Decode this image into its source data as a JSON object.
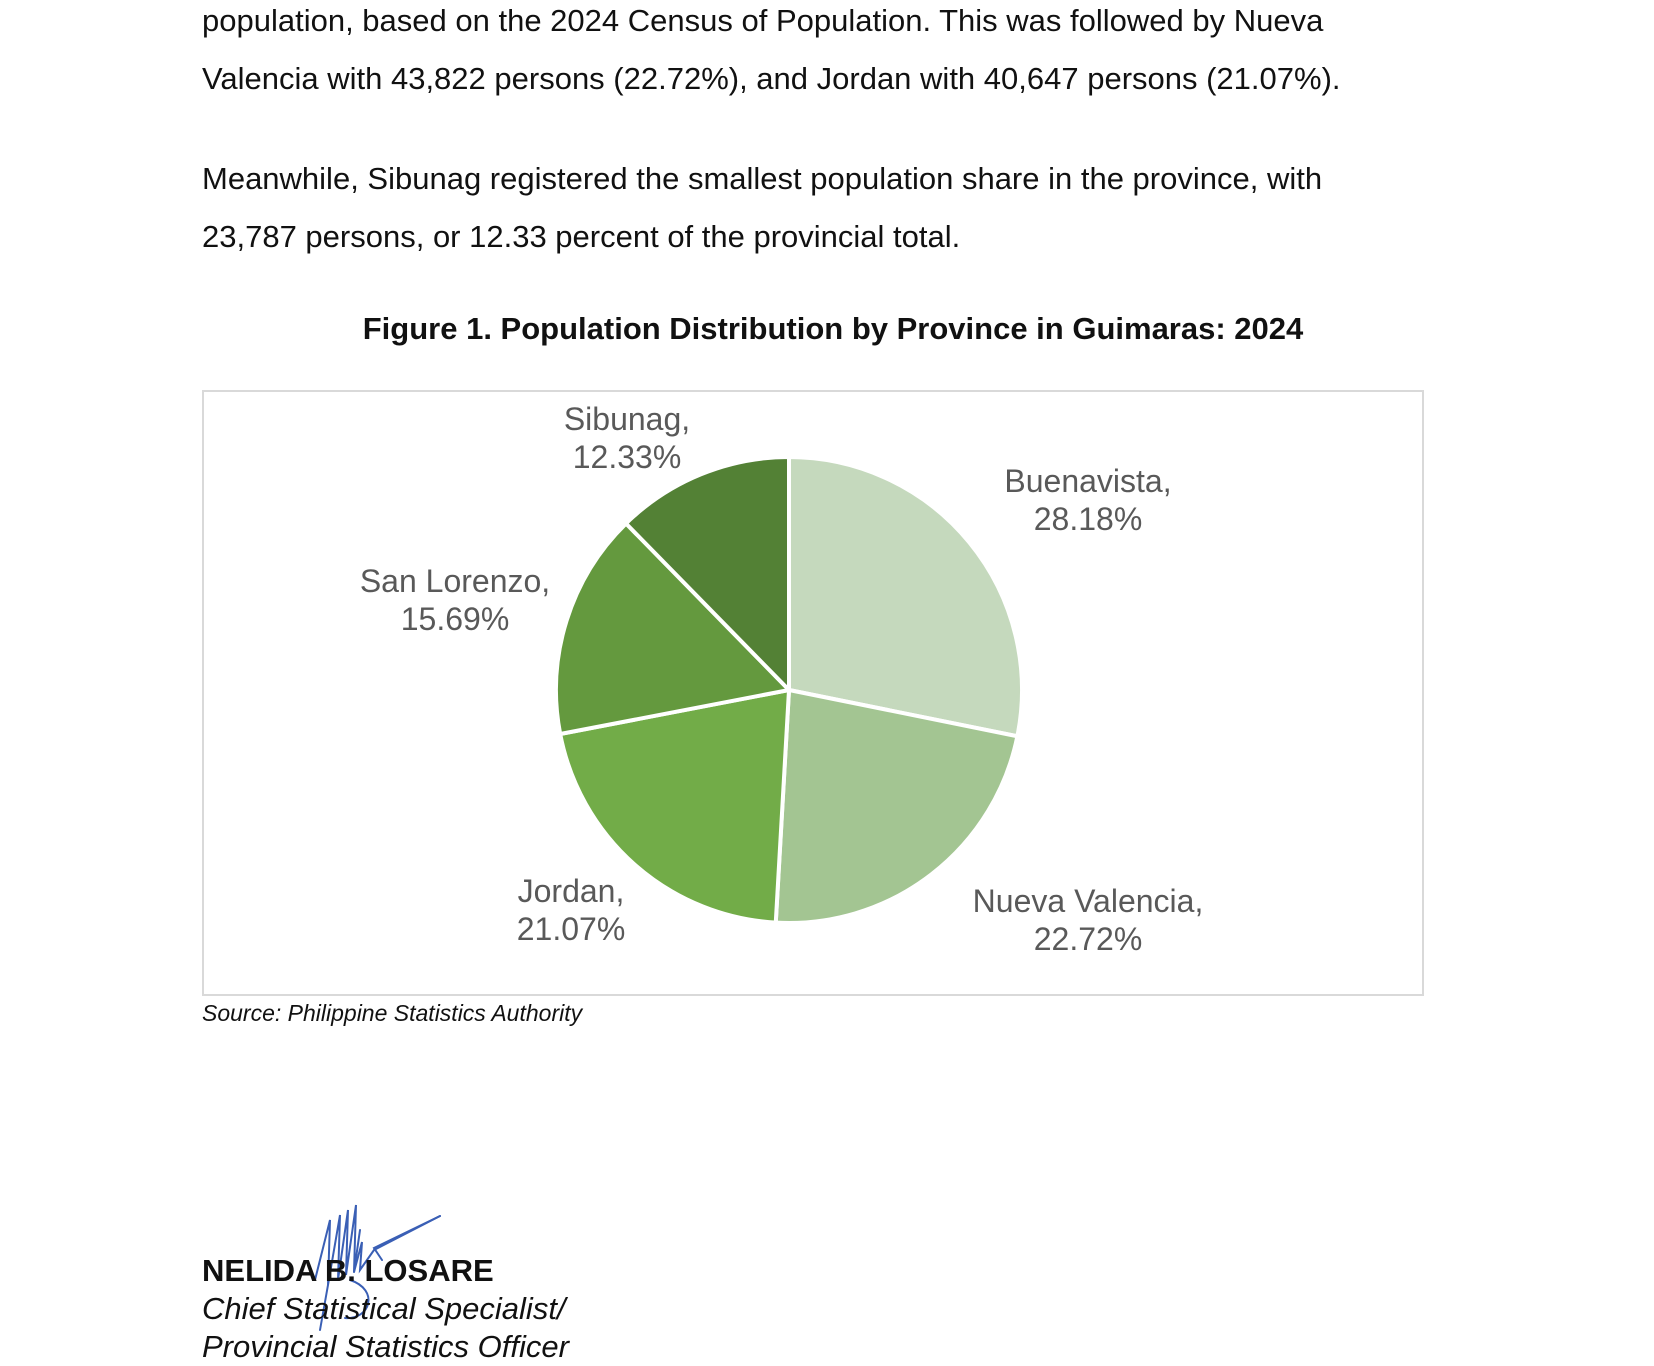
{
  "paragraphs": {
    "p1_line1": "population, based on the 2024 Census of Population. This was followed by Nueva",
    "p1_line2": "Valencia with 43,822 persons (22.72%), and Jordan with 40,647 persons (21.07%).",
    "p2_line1": "Meanwhile, Sibunag registered the smallest population share in the province, with",
    "p2_line2": "23,787 persons, or 12.33 percent of the provincial total."
  },
  "figure": {
    "title": "Figure 1. Population Distribution by Province in Guimaras: 2024",
    "source": "Source: Philippine Statistics Authority"
  },
  "chart_data": {
    "type": "pie",
    "title": "Figure 1. Population Distribution by Province in Guimaras: 2024",
    "categories": [
      "Buenavista",
      "Nueva Valencia",
      "Jordan",
      "San Lorenzo",
      "Sibunag"
    ],
    "values": [
      28.18,
      22.72,
      21.07,
      15.69,
      12.33
    ],
    "data_labels": [
      [
        "Buenavista,",
        "28.18%"
      ],
      [
        "Nueva Valencia,",
        "22.72%"
      ],
      [
        "Jordan,",
        "21.07%"
      ],
      [
        "San Lorenzo,",
        "15.69%"
      ],
      [
        "Sibunag,",
        "12.33%"
      ]
    ],
    "colors": [
      "#c5d9bd",
      "#a3c592",
      "#72ac48",
      "#64993e",
      "#538135"
    ],
    "start": "12 o'clock, clockwise",
    "legend": "none (data labels)"
  },
  "signatory": {
    "name": "NELIDA B. LOSARE",
    "title_line1": "Chief Statistical Specialist/",
    "title_line2": "Provincial Statistics Officer"
  }
}
